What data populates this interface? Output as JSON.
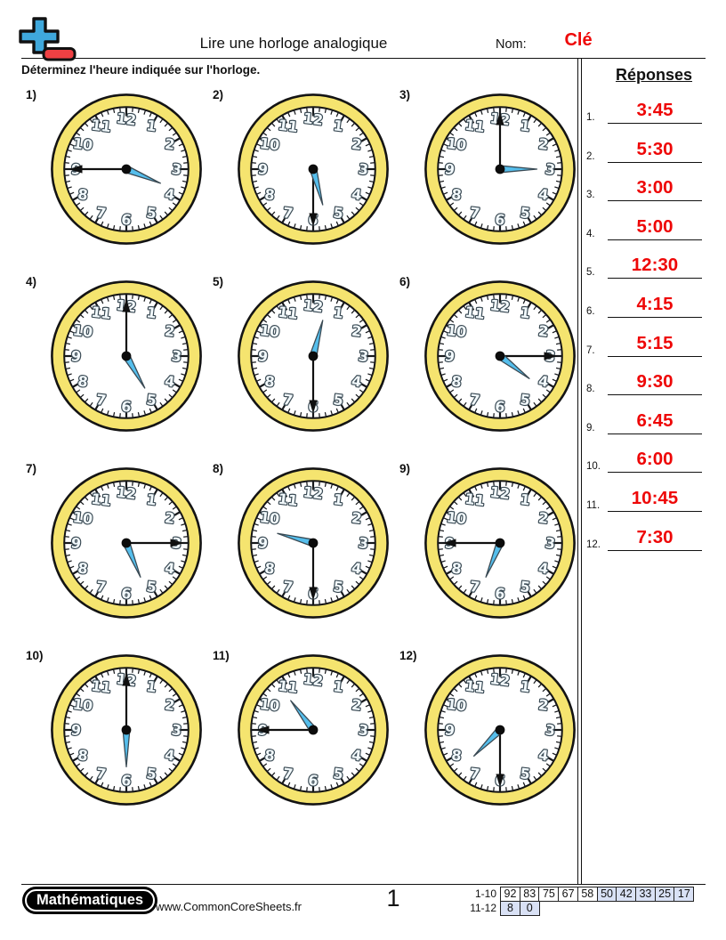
{
  "header": {
    "title": "Lire une horloge analogique",
    "nom_label": "Nom:",
    "nom_value": "Clé",
    "instruction": "Déterminez l'heure indiquée sur l'horloge."
  },
  "answers": {
    "title": "Réponses",
    "items": [
      {
        "num": "1.",
        "value": "3:45"
      },
      {
        "num": "2.",
        "value": "5:30"
      },
      {
        "num": "3.",
        "value": "3:00"
      },
      {
        "num": "4.",
        "value": "5:00"
      },
      {
        "num": "5.",
        "value": "12:30"
      },
      {
        "num": "6.",
        "value": "4:15"
      },
      {
        "num": "7.",
        "value": "5:15"
      },
      {
        "num": "8.",
        "value": "9:30"
      },
      {
        "num": "9.",
        "value": "6:45"
      },
      {
        "num": "10.",
        "value": "6:00"
      },
      {
        "num": "11.",
        "value": "10:45"
      },
      {
        "num": "12.",
        "value": "7:30"
      }
    ]
  },
  "clocks_common": {
    "numerals": [
      "1",
      "2",
      "3",
      "4",
      "5",
      "6",
      "7",
      "8",
      "9",
      "10",
      "11",
      "12"
    ]
  },
  "clocks": [
    {
      "label": "1)",
      "time": "3:45"
    },
    {
      "label": "2)",
      "time": "5:30"
    },
    {
      "label": "3)",
      "time": "3:00"
    },
    {
      "label": "4)",
      "time": "5:00"
    },
    {
      "label": "5)",
      "time": "12:30"
    },
    {
      "label": "6)",
      "time": "4:15"
    },
    {
      "label": "7)",
      "time": "5:15"
    },
    {
      "label": "8)",
      "time": "9:30"
    },
    {
      "label": "9)",
      "time": "6:45"
    },
    {
      "label": "10)",
      "time": "6:00"
    },
    {
      "label": "11)",
      "time": "10:45"
    },
    {
      "label": "12)",
      "time": "7:30"
    }
  ],
  "footer": {
    "subject": "Mathématiques",
    "website": "www.CommonCoreSheets.fr",
    "page": "1",
    "grade_table": {
      "rows": [
        {
          "label": "1-10",
          "cells": [
            "92",
            "83",
            "75",
            "67",
            "58",
            "50",
            "42",
            "33",
            "25",
            "17"
          ],
          "highlight_from": 5
        },
        {
          "label": "11-12",
          "cells": [
            "8",
            "0"
          ],
          "highlight_from": 0
        }
      ]
    }
  },
  "colors": {
    "answer_red": "#EE0707",
    "clock_ring_yellow": "#F5E46F",
    "hour_hand_blue": "#55BEEC",
    "hand_outline": "#3a4a54",
    "grade_cell_blue": "#D9E1F5",
    "logo_blue": "#3FA8DC",
    "logo_red": "#EF4043"
  }
}
